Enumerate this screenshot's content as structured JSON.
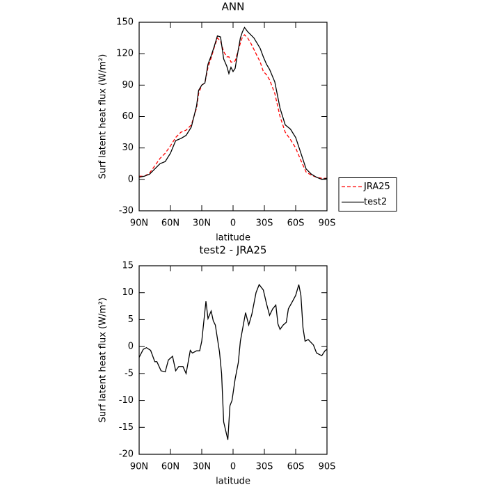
{
  "chart_data": [
    {
      "type": "line",
      "title": "ANN",
      "xlabel": "latitude",
      "ylabel": "Surf latent heat flux (W/m²)",
      "x": [
        90,
        85,
        80,
        75,
        70,
        65,
        60,
        55,
        50,
        45,
        40,
        35,
        33,
        30,
        27,
        24,
        21,
        18,
        15,
        12,
        9,
        6,
        4,
        2,
        0,
        -2,
        -4,
        -7,
        -9,
        -11,
        -14,
        -17,
        -20,
        -23,
        -26,
        -29,
        -32,
        -35,
        -40,
        -45,
        -50,
        -55,
        -60,
        -65,
        -70,
        -75,
        -80,
        -85,
        -90
      ],
      "series": [
        {
          "name": "JRA25",
          "color": "#ff0000",
          "dashed": true,
          "values": [
            3,
            3,
            6,
            13,
            20,
            25,
            32,
            40,
            45,
            47,
            52,
            68,
            82,
            90,
            92,
            107,
            116,
            126,
            135,
            132,
            122,
            117,
            117,
            112,
            112,
            113,
            120,
            130,
            136,
            138,
            135,
            130,
            124,
            118,
            112,
            103,
            100,
            95,
            82,
            60,
            45,
            38,
            30,
            18,
            7,
            4,
            2,
            1,
            1
          ]
        },
        {
          "name": "test2",
          "color": "#000000",
          "dashed": false,
          "values": [
            2,
            3,
            5,
            10,
            15,
            17,
            25,
            37,
            39,
            42,
            50,
            70,
            85,
            90,
            92,
            110,
            118,
            127,
            137,
            136,
            115,
            108,
            101,
            107,
            103,
            106,
            118,
            135,
            141,
            145,
            141,
            138,
            135,
            130,
            125,
            117,
            110,
            105,
            93,
            68,
            52,
            48,
            40,
            25,
            10,
            5,
            2,
            0,
            1
          ]
        }
      ],
      "xlim": [
        90,
        -90
      ],
      "xticks": [
        {
          "value": 90,
          "label": "90N"
        },
        {
          "value": 60,
          "label": "60N"
        },
        {
          "value": 30,
          "label": "30N"
        },
        0,
        {
          "value": -30,
          "label": "30S"
        },
        {
          "value": -60,
          "label": "60S"
        },
        {
          "value": -90,
          "label": "90S"
        }
      ],
      "ylim": [
        -30,
        150
      ],
      "yticks": [
        -30,
        0,
        30,
        60,
        90,
        120,
        150
      ],
      "legend": "right"
    },
    {
      "type": "line",
      "title": "test2 - JRA25",
      "xlabel": "latitude",
      "ylabel": "Surf latent heat flux (W/m²)",
      "x": [
        90,
        86,
        83,
        79,
        75,
        73,
        69,
        65,
        62,
        58,
        55,
        52,
        48,
        45,
        41,
        39,
        35,
        32,
        30,
        26,
        24,
        21,
        19,
        17,
        13,
        11,
        9,
        5,
        3,
        1,
        -2,
        -5,
        -7,
        -10,
        -12,
        -15,
        -18,
        -22,
        -25,
        -29,
        -32,
        -35,
        -38,
        -41,
        -43,
        -45,
        -48,
        -51,
        -53,
        -57,
        -60,
        -63,
        -65,
        -67,
        -69,
        -72,
        -77,
        -80,
        -85,
        -88,
        -90
      ],
      "series": [
        {
          "name": "test2 - JRA25",
          "color": "#000000",
          "dashed": false,
          "values": [
            -2,
            -0.5,
            -0.2,
            -0.7,
            -2.8,
            -2.8,
            -4.5,
            -4.7,
            -2.5,
            -1.8,
            -4.5,
            -3.7,
            -3.7,
            -5,
            -0.7,
            -1.2,
            -0.8,
            -0.8,
            1,
            8.4,
            5.2,
            6.6,
            4.8,
            4,
            -1,
            -5,
            -14,
            -17.3,
            -11,
            -10,
            -6,
            -3,
            1,
            4.2,
            6.3,
            4,
            6,
            10,
            11.5,
            10.5,
            8,
            5.8,
            7,
            7.7,
            4.2,
            3.2,
            4,
            4.5,
            7,
            8.4,
            9.5,
            11.5,
            9.5,
            3.5,
            1,
            1.3,
            0.3,
            -1.2,
            -1.7,
            -0.8,
            -0.5
          ]
        }
      ],
      "xlim": [
        90,
        -90
      ],
      "xticks": [
        {
          "value": 90,
          "label": "90N"
        },
        {
          "value": 60,
          "label": "60N"
        },
        {
          "value": 30,
          "label": "30N"
        },
        0,
        {
          "value": -30,
          "label": "30S"
        },
        {
          "value": -60,
          "label": "60S"
        },
        {
          "value": -90,
          "label": "90S"
        }
      ],
      "ylim": [
        -20,
        15
      ],
      "yticks": [
        -20,
        -15,
        -10,
        -5,
        0,
        5,
        10,
        15
      ]
    }
  ]
}
